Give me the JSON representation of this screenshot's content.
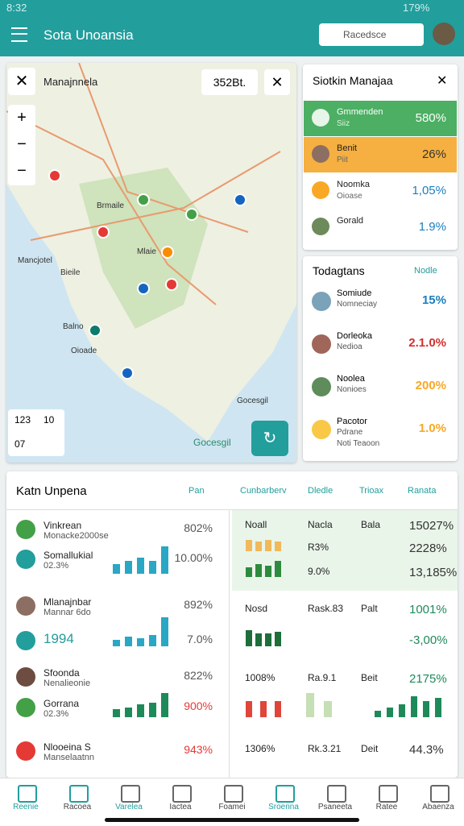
{
  "status": {
    "time": "8:32",
    "battery": "179%"
  },
  "appbar": {
    "title": "Sota Unoansia",
    "search": "Racedsce"
  },
  "map": {
    "title": "Manajnnela",
    "code": "352Bt.",
    "labels": [
      "Brmaile",
      "Mlaie",
      "Mancjotel",
      "Bieile",
      "Balno",
      "Oioade",
      "Gocesgil"
    ],
    "stats": [
      "123",
      "10",
      "07"
    ],
    "credit": "Gocesgil"
  },
  "summary": {
    "title": "Siotkin Manajaa",
    "items": [
      {
        "name": "Gmmenden",
        "sub": "Siiz",
        "value": "580%"
      },
      {
        "name": "Benit",
        "sub": "Piit",
        "value": "26%"
      },
      {
        "name": "Noomka",
        "sub": "Oioase",
        "value": "1,05%"
      },
      {
        "name": "Gorald",
        "value": "1.9%"
      }
    ]
  },
  "trending": {
    "title": "Todagtans",
    "filter": "Nodle",
    "items": [
      {
        "name": "Somiude",
        "sub": "Nomneciay",
        "value": "15%"
      },
      {
        "name": "Dorleoka",
        "sub": "Nedioa",
        "value": "2.1.0%"
      },
      {
        "name": "Noolea",
        "sub": "Nonioes",
        "value": "200%"
      },
      {
        "name": "Pacotor",
        "sub": "Pdrane",
        "value": "1.0%"
      }
    ],
    "note": "Noti Teaoon"
  },
  "report": {
    "title": "Katn Unpena",
    "tabs": [
      "Pan",
      "Cunbarberv",
      "Dledle",
      "Trioax",
      "Ranata"
    ],
    "left": [
      {
        "name": "Vinkrean",
        "sub": "Monacke2000se",
        "value": "802%"
      },
      {
        "name": "Somallukial",
        "sub": "02.3%",
        "value": "10.00%"
      },
      {
        "name": "Mlanajnbar",
        "sub": "Mannar 6do",
        "value": "892%"
      },
      {
        "name": "1994",
        "value": "7.0%"
      },
      {
        "name": "Sfoonda",
        "sub": "Nenalieonie",
        "value": "822%"
      },
      {
        "name": "Gorrana",
        "sub": "02.3%",
        "value": "900%"
      },
      {
        "name": "Nlooeina S",
        "sub": "Manselaatnn",
        "value": "943%"
      }
    ],
    "table": [
      [
        "Noall",
        "Nacla",
        "Bala",
        "15027%"
      ],
      [
        null,
        "R3%",
        null,
        "2228%"
      ],
      [
        null,
        "9.0%",
        null,
        "13,185%"
      ],
      [
        "Nosd",
        "Rask.83",
        "Palt",
        "1001%"
      ],
      [
        null,
        null,
        null,
        "-3,00%"
      ],
      [
        "1008%",
        "Ra.9.1",
        "Beit",
        "2175%"
      ],
      [
        "1306%",
        "Rk.3.21",
        "Deit",
        "44.3%"
      ]
    ]
  },
  "nav": [
    "Reenie",
    "Racoea",
    "Varelea",
    "Iactea",
    "Foamei",
    "Sroenna",
    "Psaneeta",
    "Ratee",
    "Abaenza"
  ]
}
